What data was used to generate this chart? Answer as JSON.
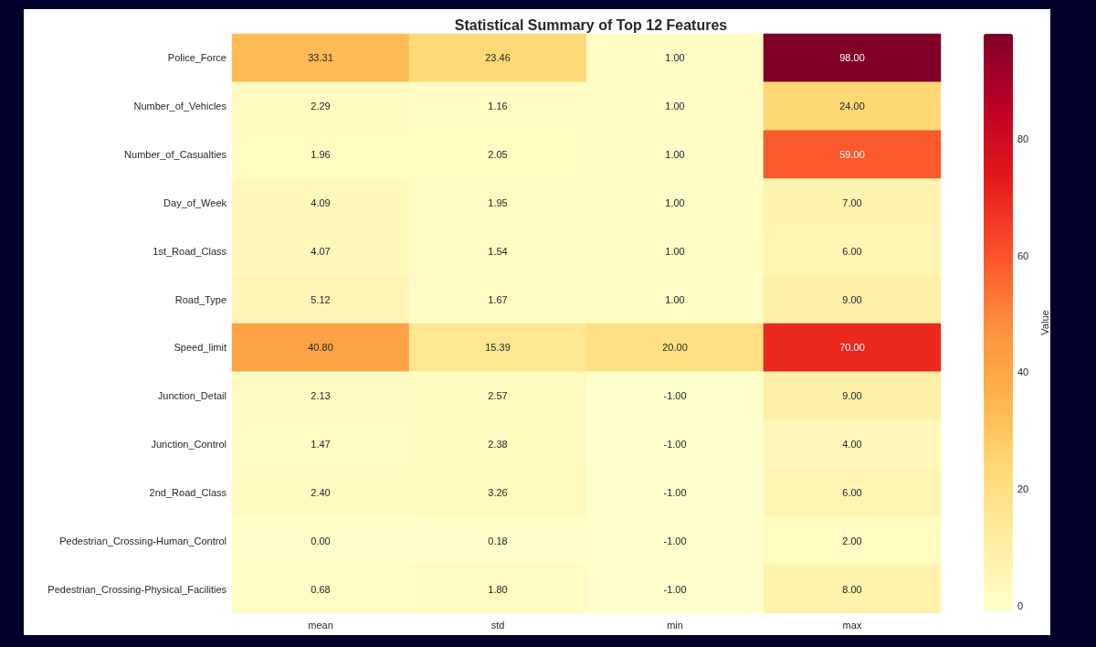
{
  "chart_data": {
    "type": "heatmap",
    "title": "Statistical Summary of Top 12 Features",
    "categories": [
      "mean",
      "std",
      "min",
      "max"
    ],
    "y_categories": [
      "Police_Force",
      "Number_of_Vehicles",
      "Number_of_Casualties",
      "Day_of_Week",
      "1st_Road_Class",
      "Road_Type",
      "Speed_limit",
      "Junction_Detail",
      "Junction_Control",
      "2nd_Road_Class",
      "Pedestrian_Crossing-Human_Control",
      "Pedestrian_Crossing-Physical_Facilities"
    ],
    "cells": [
      [
        33.31,
        23.46,
        1,
        98
      ],
      [
        2.29,
        1.16,
        1,
        24
      ],
      [
        1.96,
        2.05,
        1,
        59
      ],
      [
        4.09,
        1.95,
        1,
        7
      ],
      [
        4.07,
        1.54,
        1,
        6
      ],
      [
        5.12,
        1.67,
        1,
        9
      ],
      [
        40.8,
        15.39,
        20,
        70
      ],
      [
        2.13,
        2.57,
        -1,
        9
      ],
      [
        1.47,
        2.38,
        -1,
        4
      ],
      [
        2.4,
        3.26,
        -1,
        6
      ],
      [
        0,
        0.18,
        -1,
        2
      ],
      [
        0.68,
        1.8,
        -1,
        8
      ]
    ],
    "cell_labels": [
      [
        "33.31",
        "23.46",
        "1.00",
        "98.00"
      ],
      [
        "2.29",
        "1.16",
        "1.00",
        "24.00"
      ],
      [
        "1.96",
        "2.05",
        "1.00",
        "59.00"
      ],
      [
        "4.09",
        "1.95",
        "1.00",
        "7.00"
      ],
      [
        "4.07",
        "1.54",
        "1.00",
        "6.00"
      ],
      [
        "5.12",
        "1.67",
        "1.00",
        "9.00"
      ],
      [
        "40.80",
        "15.39",
        "20.00",
        "70.00"
      ],
      [
        "2.13",
        "2.57",
        "-1.00",
        "9.00"
      ],
      [
        "1.47",
        "2.38",
        "-1.00",
        "4.00"
      ],
      [
        "2.40",
        "3.26",
        "-1.00",
        "6.00"
      ],
      [
        "0.00",
        "0.18",
        "-1.00",
        "2.00"
      ],
      [
        "0.68",
        "1.80",
        "-1.00",
        "8.00"
      ]
    ],
    "clim": [
      -1,
      98
    ],
    "cticks": [
      0,
      20,
      40,
      60,
      80
    ],
    "clabel": "Value"
  }
}
